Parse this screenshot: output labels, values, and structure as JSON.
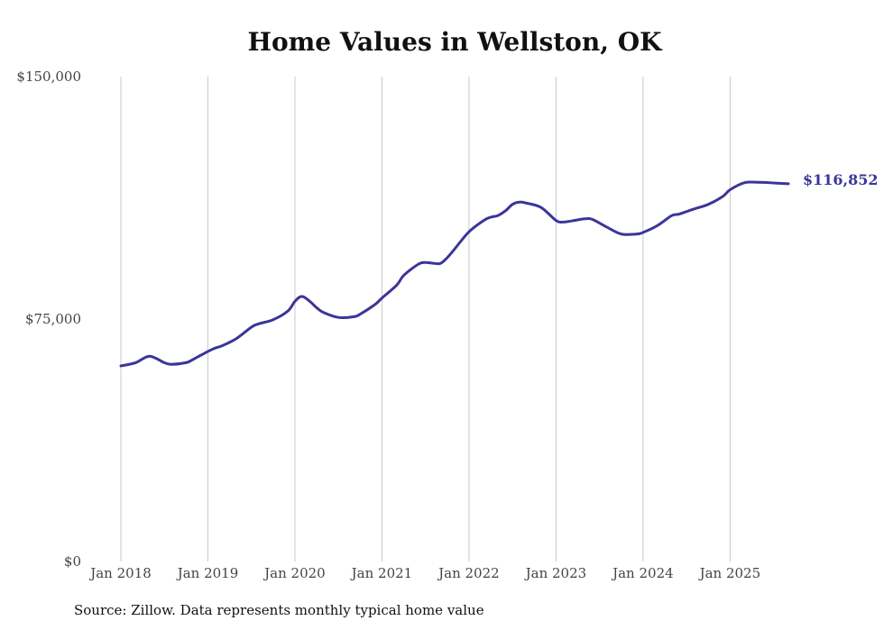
{
  "chart_data": {
    "type": "line",
    "title": "Home Values in Wellston, OK",
    "xlabel": "",
    "ylabel": "",
    "x_tick_labels": [
      "Jan 2018",
      "Jan 2019",
      "Jan 2020",
      "Jan 2021",
      "Jan 2022",
      "Jan 2023",
      "Jan 2024",
      "Jan 2025"
    ],
    "y_ticks": [
      0,
      75000,
      150000
    ],
    "y_tick_labels": [
      "$0",
      "$75,000",
      "$150,000"
    ],
    "ylim": [
      0,
      150000
    ],
    "xlim": [
      2018.0,
      2025.67
    ],
    "grid": "vertical",
    "series": [
      {
        "name": "Typical home value",
        "color": "#3b3599",
        "x": [
          2018.0,
          2018.17,
          2018.33,
          2018.5,
          2018.58,
          2018.75,
          2018.83,
          2019.0,
          2019.08,
          2019.17,
          2019.33,
          2019.5,
          2019.58,
          2019.75,
          2019.92,
          2020.0,
          2020.08,
          2020.17,
          2020.25,
          2020.33,
          2020.5,
          2020.67,
          2020.75,
          2020.92,
          2021.0,
          2021.17,
          2021.25,
          2021.42,
          2021.5,
          2021.58,
          2021.67,
          2021.75,
          2021.83,
          2022.0,
          2022.17,
          2022.25,
          2022.33,
          2022.42,
          2022.5,
          2022.58,
          2022.67,
          2022.83,
          2023.0,
          2023.08,
          2023.17,
          2023.33,
          2023.42,
          2023.58,
          2023.75,
          2023.92,
          2024.0,
          2024.17,
          2024.33,
          2024.42,
          2024.58,
          2024.75,
          2024.92,
          2025.0,
          2025.17,
          2025.33,
          2025.5,
          2025.67
        ],
        "values": [
          60500,
          61500,
          63500,
          61500,
          61000,
          61500,
          62500,
          65000,
          66000,
          66800,
          69000,
          72500,
          73500,
          74800,
          77500,
          80500,
          82000,
          80500,
          78500,
          77000,
          75500,
          75700,
          76500,
          79500,
          81500,
          85500,
          88500,
          92000,
          92500,
          92300,
          92200,
          94000,
          96500,
          102000,
          105500,
          106500,
          107000,
          108500,
          110500,
          111200,
          110800,
          109500,
          105500,
          105000,
          105300,
          106000,
          105800,
          103500,
          101300,
          101300,
          101800,
          104000,
          107000,
          107500,
          109000,
          110500,
          113000,
          115000,
          117200,
          117300,
          117100,
          116852
        ]
      }
    ],
    "end_label": "$116,852",
    "source": "Source: Zillow. Data represents monthly typical home value"
  }
}
